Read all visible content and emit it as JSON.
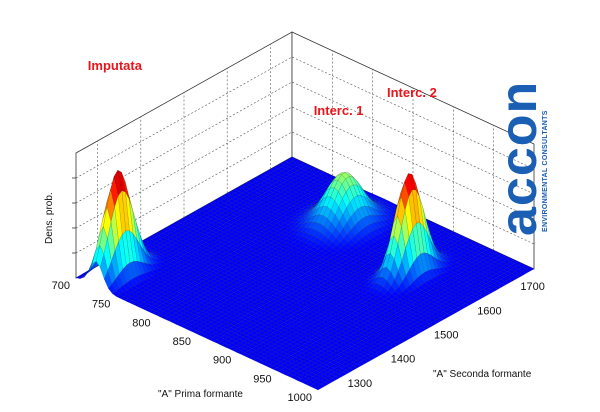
{
  "chart_data": {
    "type": "surface3d",
    "x_axis": {
      "label": "\"A\" Prima formante",
      "ticks": [
        700,
        750,
        800,
        850,
        900,
        950,
        1000
      ],
      "range": [
        700,
        1000
      ]
    },
    "y_axis": {
      "label": "\"A\" Seconda formante",
      "ticks": [
        1300,
        1400,
        1500,
        1600,
        1700
      ],
      "range": [
        1250,
        1750
      ]
    },
    "z_axis": {
      "label": "Dens. prob.",
      "range": [
        0,
        1
      ]
    },
    "grid": true,
    "colormap": "jet",
    "peaks": [
      {
        "label": "Imputata",
        "x": 725,
        "y": 1300,
        "height": 0.84,
        "sx": 8,
        "sy": 30
      },
      {
        "label": "Interc. 1",
        "x": 815,
        "y": 1655,
        "height": 0.4,
        "sx": 16,
        "sy": 33
      },
      {
        "label": "Interc. 2",
        "x": 920,
        "y": 1610,
        "height": 0.8,
        "sx": 9,
        "sy": 28
      }
    ]
  },
  "logo": {
    "main": "accon",
    "sub": "ENVIRONMENTAL CONSULTANTS"
  }
}
